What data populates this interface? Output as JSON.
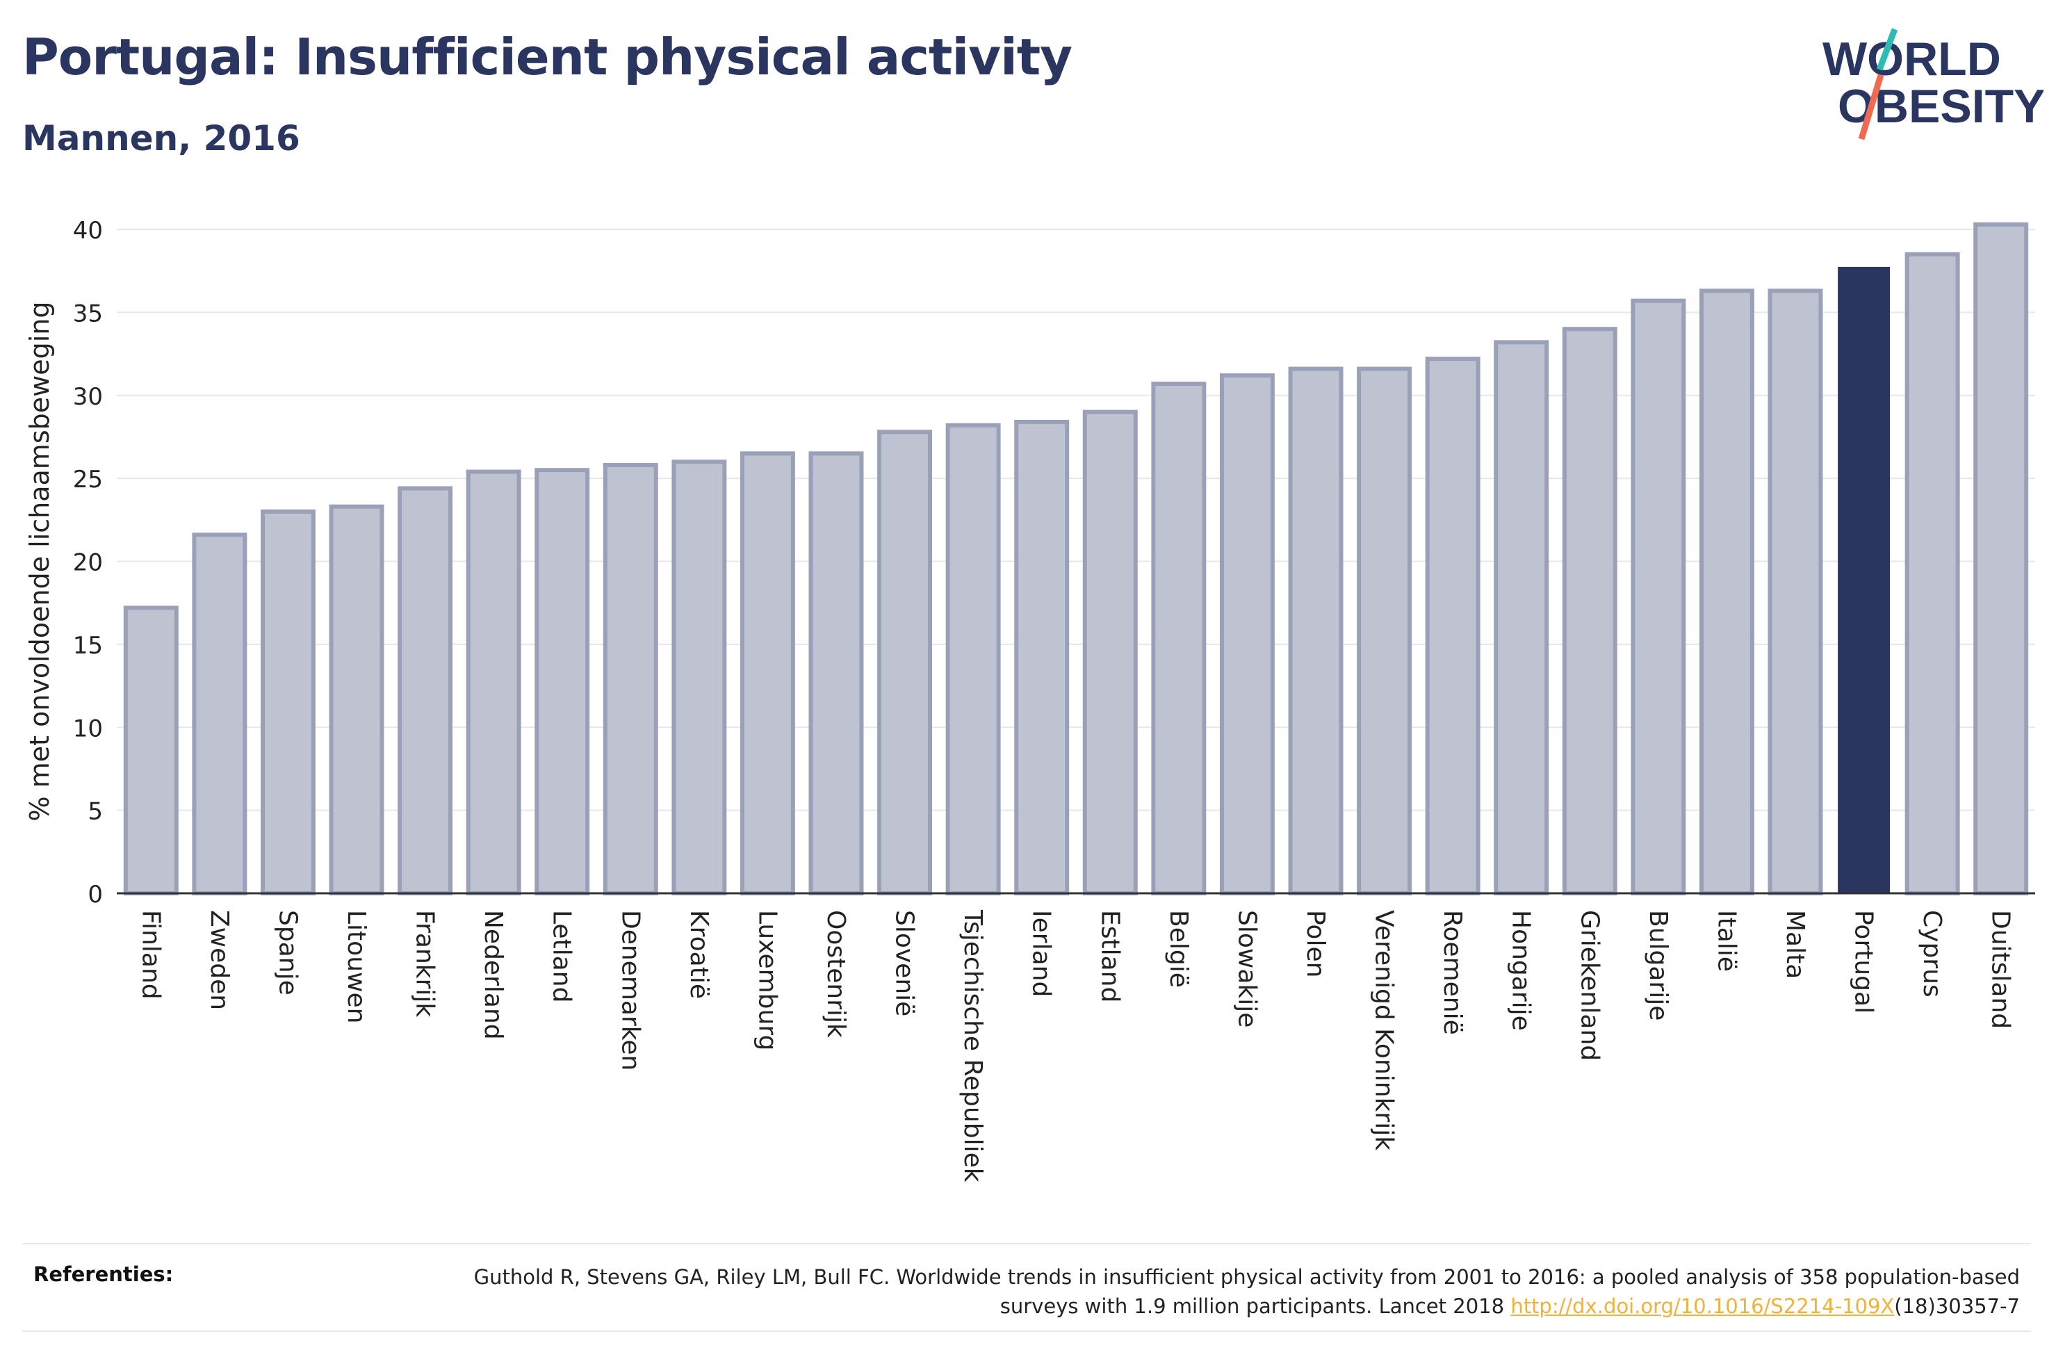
{
  "title": "Portugal: Insufficient physical activity",
  "subtitle": "Mannen, 2016",
  "logo": {
    "line1": "WORLD",
    "line2": "OBESITY"
  },
  "colors": {
    "accent": "#2b3660",
    "bar": "#bfc3d1",
    "bar_border": "#9aa0b8",
    "highlight": "#2b3660",
    "link": "#f0b23a"
  },
  "references": {
    "label": "Referenties:",
    "text": "Guthold R, Stevens GA, Riley LM, Bull FC. Worldwide trends in insufficient physical activity from 2001 to 2016: a pooled analysis of 358 population-based surveys with 1.9 million participants. Lancet 2018",
    "link": "http://dx.doi.org/10.1016/S2214-109X",
    "suffix": "(18)30357-7"
  },
  "chart_data": {
    "type": "bar",
    "ylabel": "% met onvoldoende lichaamsbeweging",
    "ylim": [
      0,
      40
    ],
    "yticks": [
      0,
      5,
      10,
      15,
      20,
      25,
      30,
      35,
      40
    ],
    "grid": true,
    "highlight": "Portugal",
    "categories": [
      "Finland",
      "Zweden",
      "Spanje",
      "Litouwen",
      "Frankrijk",
      "Nederland",
      "Letland",
      "Denemarken",
      "Kroatië",
      "Luxemburg",
      "Oostenrijk",
      "Slovenië",
      "Tsjechische Republiek",
      "Ierland",
      "Estland",
      "België",
      "Slowakije",
      "Polen",
      "Verenigd Koninkrijk",
      "Roemenië",
      "Hongarije",
      "Griekenland",
      "Bulgarije",
      "Italië",
      "Malta",
      "Portugal",
      "Cyprus",
      "Duitsland"
    ],
    "values": [
      17.2,
      21.6,
      23.0,
      23.3,
      24.4,
      25.4,
      25.5,
      25.8,
      26.0,
      26.5,
      26.5,
      27.8,
      28.2,
      28.4,
      29.0,
      30.7,
      31.2,
      31.6,
      31.6,
      32.2,
      33.2,
      34.0,
      35.7,
      36.3,
      36.3,
      37.7,
      38.5,
      40.3
    ]
  }
}
